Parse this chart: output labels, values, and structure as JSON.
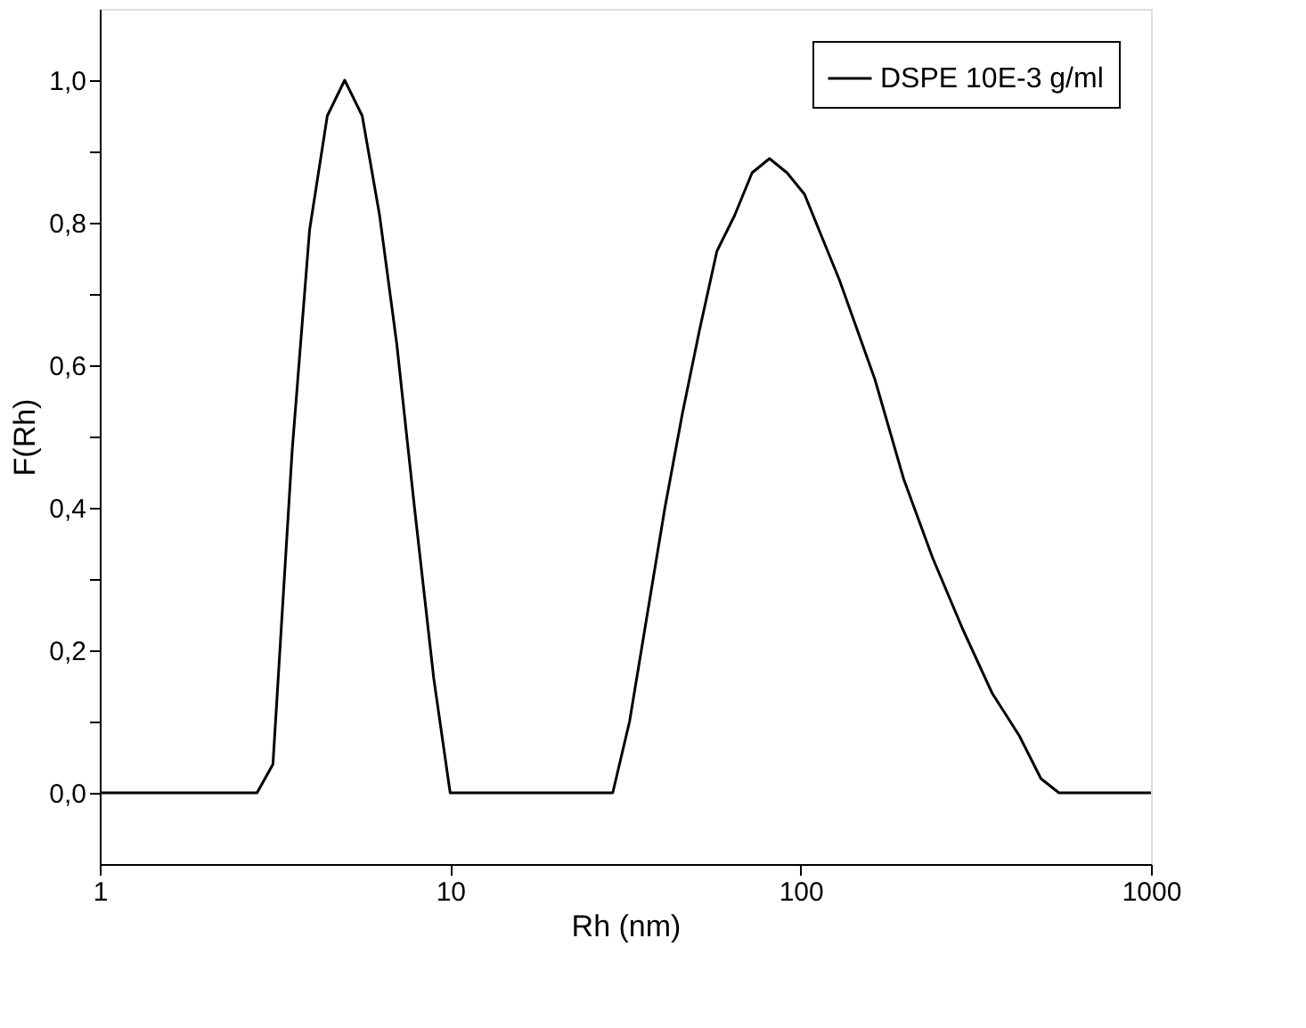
{
  "chart_data": {
    "type": "line",
    "xlabel": "Rh (nm)",
    "ylabel": "F(Rh)",
    "log": "x",
    "xlim": [
      1,
      1000
    ],
    "xticks": [
      1,
      10,
      100,
      1000
    ],
    "ylim": [
      -0.1,
      1.1
    ],
    "yticks": [
      {
        "value": 0,
        "label": "0,0"
      },
      {
        "value": 0.1,
        "label": null
      },
      {
        "value": 0.2,
        "label": "0,2"
      },
      {
        "value": 0.3,
        "label": null
      },
      {
        "value": 0.4,
        "label": "0,4"
      },
      {
        "value": 0.5,
        "label": null
      },
      {
        "value": 0.6,
        "label": "0,6"
      },
      {
        "value": 0.7,
        "label": null
      },
      {
        "value": 0.8,
        "label": "0,8"
      },
      {
        "value": 0.9,
        "label": null
      },
      {
        "value": 1.0,
        "label": "1,0"
      }
    ],
    "grid": false,
    "legend": "top right",
    "marker": "none",
    "line_style": "solid",
    "series": [
      {
        "name": "DSPE 10E-3 g/ml",
        "color": "#000000",
        "x": [
          1,
          2.81,
          3.12,
          3.54,
          3.97,
          4.46,
          5.0,
          5.61,
          6.29,
          7.04,
          7.91,
          8.98,
          10.0,
          29.1,
          32.5,
          36.5,
          41.0,
          45.9,
          51.5,
          57.7,
          64.8,
          72.7,
          81.5,
          91.5,
          102.6,
          115,
          129,
          163,
          197,
          238,
          290,
          352,
          421,
          485,
          546,
          1000
        ],
        "values": [
          0,
          0,
          0.04,
          0.48,
          0.79,
          0.95,
          1.0,
          0.95,
          0.81,
          0.63,
          0.4,
          0.16,
          0,
          0,
          0.1,
          0.25,
          0.4,
          0.53,
          0.65,
          0.76,
          0.81,
          0.87,
          0.89,
          0.87,
          0.84,
          0.78,
          0.72,
          0.58,
          0.44,
          0.33,
          0.23,
          0.14,
          0.08,
          0.02,
          0,
          0
        ]
      }
    ]
  }
}
